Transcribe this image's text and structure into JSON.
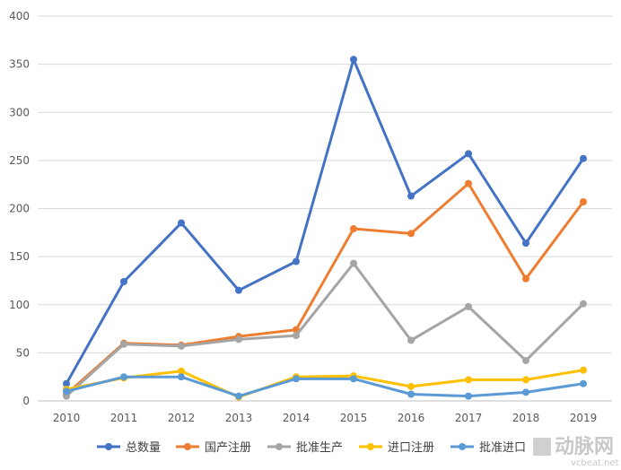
{
  "chart_data": {
    "type": "line",
    "title": "",
    "xlabel": "",
    "ylabel": "",
    "ylim": [
      0,
      400
    ],
    "yticks": [
      0,
      50,
      100,
      150,
      200,
      250,
      300,
      350,
      400
    ],
    "grid": true,
    "legend_position": "bottom",
    "categories": [
      "2010",
      "2011",
      "2012",
      "2013",
      "2014",
      "2015",
      "2016",
      "2017",
      "2018",
      "2019"
    ],
    "series": [
      {
        "name": "总数量",
        "color": "#4472c4",
        "values": [
          18,
          124,
          185,
          115,
          145,
          355,
          213,
          257,
          164,
          252
        ]
      },
      {
        "name": "国产注册",
        "color": "#ed7d31",
        "values": [
          7,
          60,
          58,
          67,
          74,
          179,
          174,
          226,
          127,
          207
        ]
      },
      {
        "name": "批准生产",
        "color": "#a5a5a5",
        "values": [
          5,
          59,
          57,
          64,
          68,
          143,
          63,
          98,
          42,
          101
        ]
      },
      {
        "name": "进口注册",
        "color": "#ffc000",
        "values": [
          12,
          24,
          31,
          4,
          25,
          26,
          15,
          22,
          22,
          32
        ]
      },
      {
        "name": "批准进口",
        "color": "#5b9bd5",
        "values": [
          10,
          25,
          25,
          5,
          23,
          23,
          7,
          5,
          9,
          18
        ]
      }
    ]
  },
  "watermark": {
    "logo_text": "动脉网",
    "url": "vcbeat.net"
  }
}
